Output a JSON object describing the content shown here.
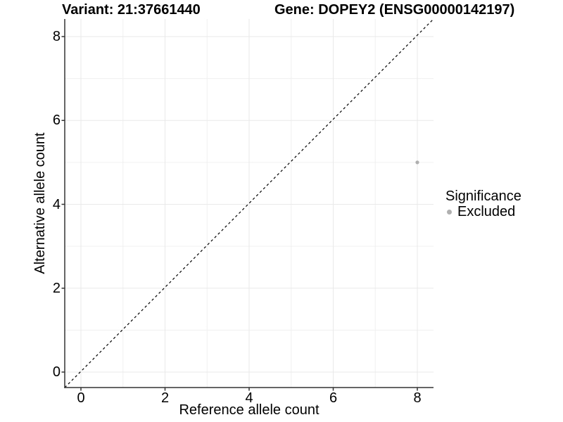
{
  "chart_data": {
    "type": "scatter",
    "titles": {
      "left": "Variant: 21:37661440",
      "right": "Gene: DOPEY2 (ENSG00000142197)"
    },
    "xlabel": "Reference allele count",
    "ylabel": "Alternative allele count",
    "x_ticks": [
      0,
      2,
      4,
      6,
      8
    ],
    "y_ticks": [
      0,
      2,
      4,
      6,
      8
    ],
    "xlim": [
      -0.4,
      8.4
    ],
    "ylim": [
      -0.4,
      8.4
    ],
    "grid": {
      "major": true,
      "minor": true,
      "minor_at": [
        1,
        3,
        5,
        7
      ]
    },
    "reference_line": {
      "type": "identity y=x",
      "style": "dashed",
      "color": "#000000"
    },
    "series": [
      {
        "name": "Excluded",
        "color": "#b0b0b0",
        "points": [
          {
            "x": 8,
            "y": 5
          }
        ]
      }
    ],
    "legend": {
      "position": "right",
      "title": "Significance",
      "items": [
        {
          "label": "Excluded",
          "color": "#b0b0b0"
        }
      ]
    },
    "colors": {
      "background": "#ffffff",
      "grid_major": "#e9e9e9",
      "grid_minor": "#f0f0f0",
      "axis": "#333333",
      "text": "#000000",
      "point": "#b0b0b0"
    }
  }
}
